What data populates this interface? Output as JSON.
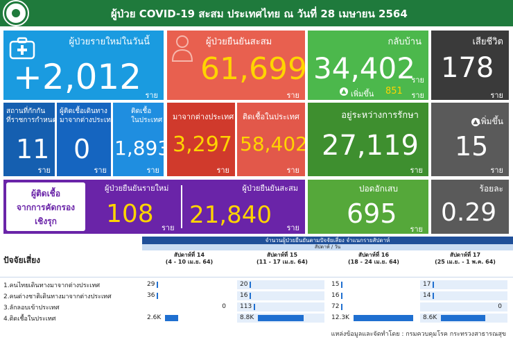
{
  "header": {
    "title": "ผู้ป่วย COVID-19 สะสม  ประเทศไทย  ณ วันที่ 28 เมษายน 2564"
  },
  "tiles": {
    "new": {
      "label": "ผู้ป่วยรายใหม่ในวันนี้",
      "value": "+2,012",
      "unit": "ราย",
      "color": "#1a9be0"
    },
    "cumulative": {
      "label": "ผู้ป่วยยืนยันสะสม",
      "value": "61,699",
      "unit": "ราย",
      "color": "#e8604f"
    },
    "recovered": {
      "label": "กลับบ้าน",
      "value": "34,402",
      "unit": "ราย",
      "increase_label": "เพิ่มขึ้น",
      "increase_value": "851",
      "increase_unit": "ราย",
      "color": "#4cb84c"
    },
    "deaths": {
      "label": "เสียชีวิต",
      "value": "178",
      "unit": "ราย",
      "color": "#3a3a3a"
    },
    "quarantine": {
      "label": "สถานที่กักกัน\nที่ราชการกำหนด",
      "value": "11",
      "unit": "ราย",
      "color": "#155fb0"
    },
    "travel": {
      "label": "ผู้ติดเชื้อเดินทาง\nมาจากต่างประเทศ",
      "value": "0",
      "unit": "ราย",
      "color": "#1565c0"
    },
    "domestic": {
      "label": "ติดเชื้อ\nในประเทศ",
      "value": "1,893",
      "unit": "ราย",
      "color": "#1f8ee0"
    },
    "from_abroad": {
      "label": "มาจากต่างประเทศ",
      "value": "3,297",
      "unit": "ราย",
      "color": "#d03a2c"
    },
    "infected_in_country": {
      "label": "ติดเชื้อในประเทศ",
      "value": "58,402",
      "unit": "ราย",
      "color": "#e2584a"
    },
    "in_treatment": {
      "label": "อยู่ระหว่างการรักษา",
      "value": "27,119",
      "unit": "ราย",
      "color": "#3e8f2f"
    },
    "death_increase": {
      "label": "เพิ่มขึ้น",
      "value": "15",
      "unit": "ราย",
      "color": "#5a5a5a"
    },
    "proactive": {
      "label": "ผู้ติดเชื้อ\nจากการคัดกรอง\nเชิงรุก",
      "color": "#6a24a8"
    },
    "proactive_new": {
      "label": "ผู้ป่วยยืนยันรายใหม่",
      "value": "108",
      "unit": "ราย"
    },
    "proactive_cum": {
      "label": "ผู้ป่วยยืนยันสะสม",
      "value": "21,840",
      "unit": "ราย"
    },
    "severe": {
      "label": "ปอดอักเสบ",
      "value": "695",
      "unit": "ราย",
      "color": "#55a83a"
    },
    "percent": {
      "label": "ร้อยละ",
      "value": "0.29",
      "color": "#5a5a5a"
    }
  },
  "table": {
    "title": "จำนวนผู้ป่วยยืนยันตามปัจจัยเสี่ยง จำแนกรายสัปดาห์",
    "subtitle": "สัปดาห์ / วัน",
    "risk_header": "ปัจจัยเสี่ยง",
    "weeks": [
      {
        "name": "สัปดาห์ที่ 14",
        "range": "(4 - 10 เม.ย. 64)"
      },
      {
        "name": "สัปดาห์ที่ 15",
        "range": "(11 - 17 เม.ย. 64)"
      },
      {
        "name": "สัปดาห์ที่ 16",
        "range": "(18 - 24 เม.ย. 64)"
      },
      {
        "name": "สัปดาห์ที่ 17",
        "range": "(25 เม.ย. - 1 พ.ค. 64)"
      }
    ],
    "rows": [
      {
        "label": "1.คนไทยเดินทางมาจากต่างประเทศ",
        "values": [
          "29",
          "20",
          "15",
          "17"
        ],
        "fractions": [
          0.01,
          0.01,
          0.01,
          0.01
        ]
      },
      {
        "label": "2.คนต่างชาติเดินทางมาจากต่างประเทศ",
        "values": [
          "36",
          "16",
          "16",
          "14"
        ],
        "fractions": [
          0.01,
          0.01,
          0.01,
          0.01
        ]
      },
      {
        "label": "3.ลักลอบเข้าประเทศ",
        "values": [
          "0",
          "113",
          "72",
          "0"
        ],
        "fractions": [
          0,
          0.02,
          0.015,
          0
        ]
      },
      {
        "label": "4.ติดเชื้อในประเทศ",
        "values": [
          "2.6K",
          "8.8K",
          "12.3K",
          "8.6K"
        ],
        "fractions": [
          0.21,
          0.72,
          1.0,
          0.7
        ]
      }
    ]
  },
  "source": "แหล่งข้อมูลและจัดทำโดย : กรมควบคุมโรค กระทรวงสาธารณสุข"
}
